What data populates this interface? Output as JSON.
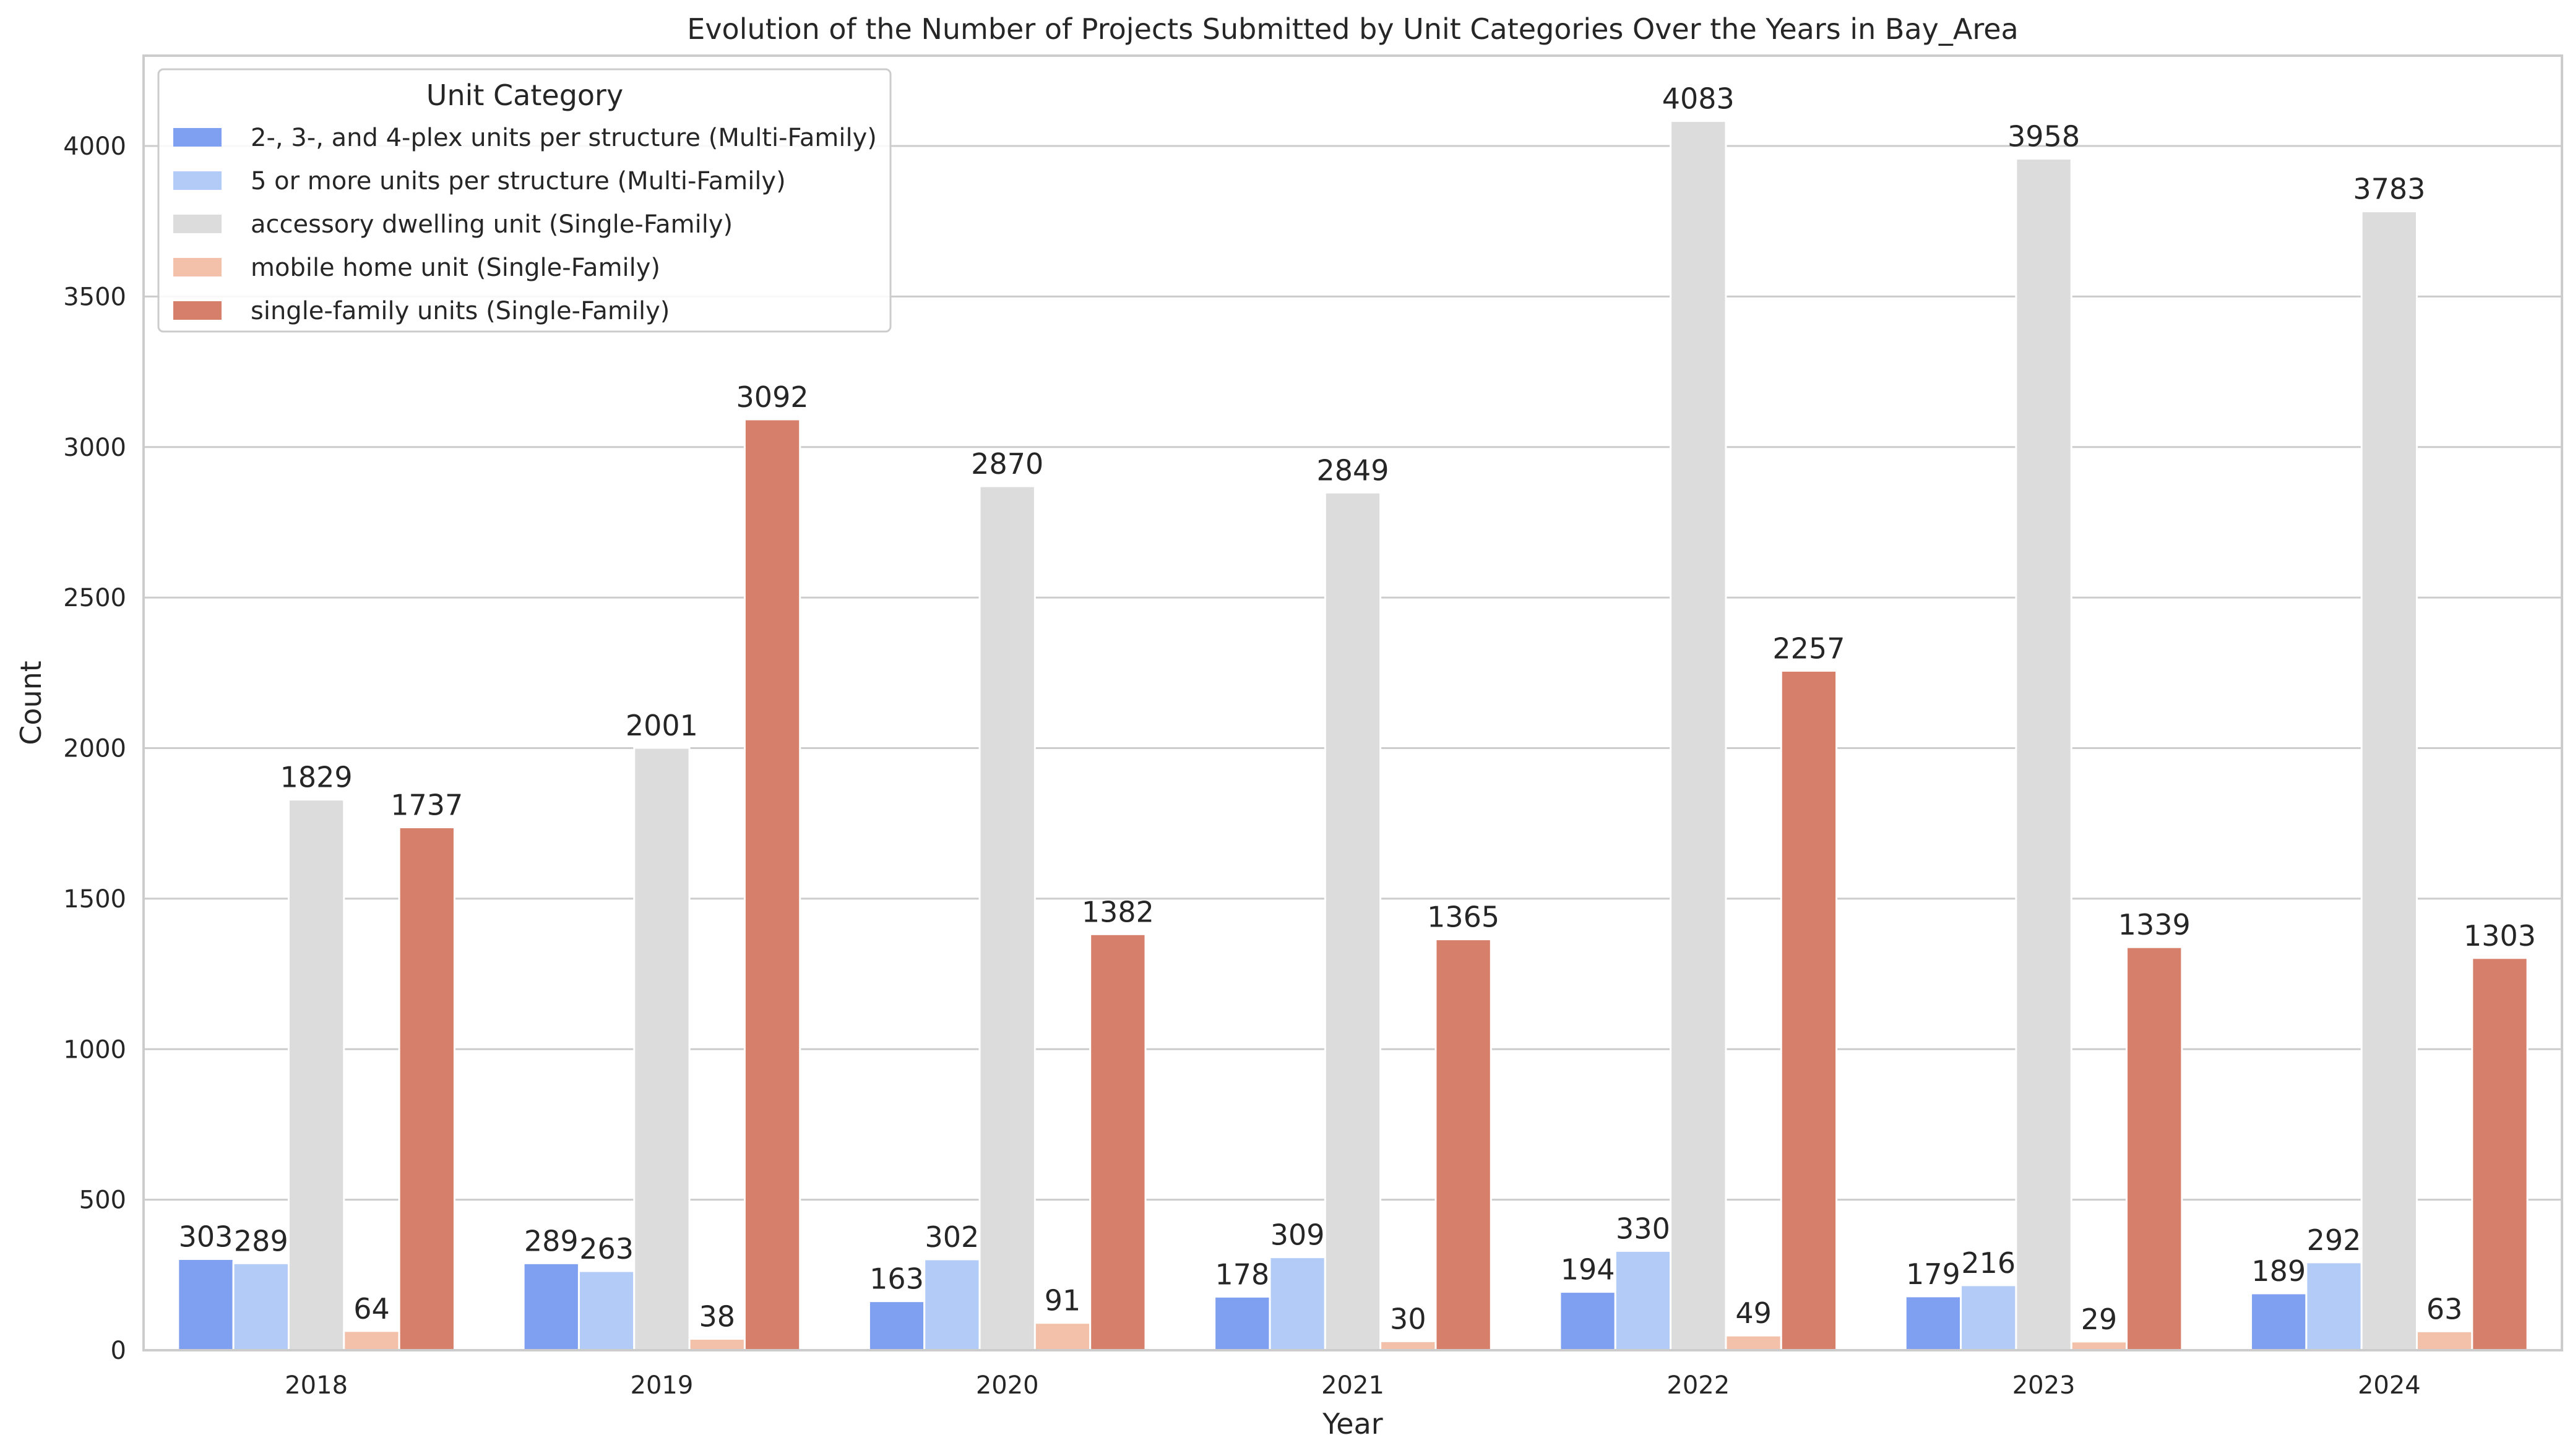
{
  "chart_data": {
    "type": "bar",
    "title": "Evolution of the Number of Projects Submitted by Unit Categories Over the Years in Bay_Area",
    "xlabel": "Year",
    "ylabel": "Count",
    "ylim": [
      0,
      4300
    ],
    "yticks": [
      0,
      500,
      1000,
      1500,
      2000,
      2500,
      3000,
      3500,
      4000
    ],
    "grid": true,
    "legend_title": "Unit Category",
    "legend_position": "top-left",
    "categories": [
      "2018",
      "2019",
      "2020",
      "2021",
      "2022",
      "2023",
      "2024"
    ],
    "series": [
      {
        "name": "2-, 3-, and 4-plex units per structure (Multi-Family)",
        "color": "#7f9ff0",
        "values": [
          303,
          289,
          163,
          178,
          194,
          179,
          189
        ]
      },
      {
        "name": "5 or more units per structure (Multi-Family)",
        "color": "#b3cbf7",
        "values": [
          289,
          263,
          302,
          309,
          330,
          216,
          292
        ]
      },
      {
        "name": "accessory dwelling unit (Single-Family)",
        "color": "#dcdcdc",
        "values": [
          1829,
          2001,
          2870,
          2849,
          4083,
          3958,
          3783
        ]
      },
      {
        "name": "mobile home unit (Single-Family)",
        "color": "#f3c1a9",
        "values": [
          64,
          38,
          91,
          30,
          49,
          29,
          63
        ]
      },
      {
        "name": "single-family units (Single-Family)",
        "color": "#d6806c",
        "values": [
          1737,
          3092,
          1382,
          1365,
          2257,
          1339,
          1303
        ]
      }
    ]
  }
}
